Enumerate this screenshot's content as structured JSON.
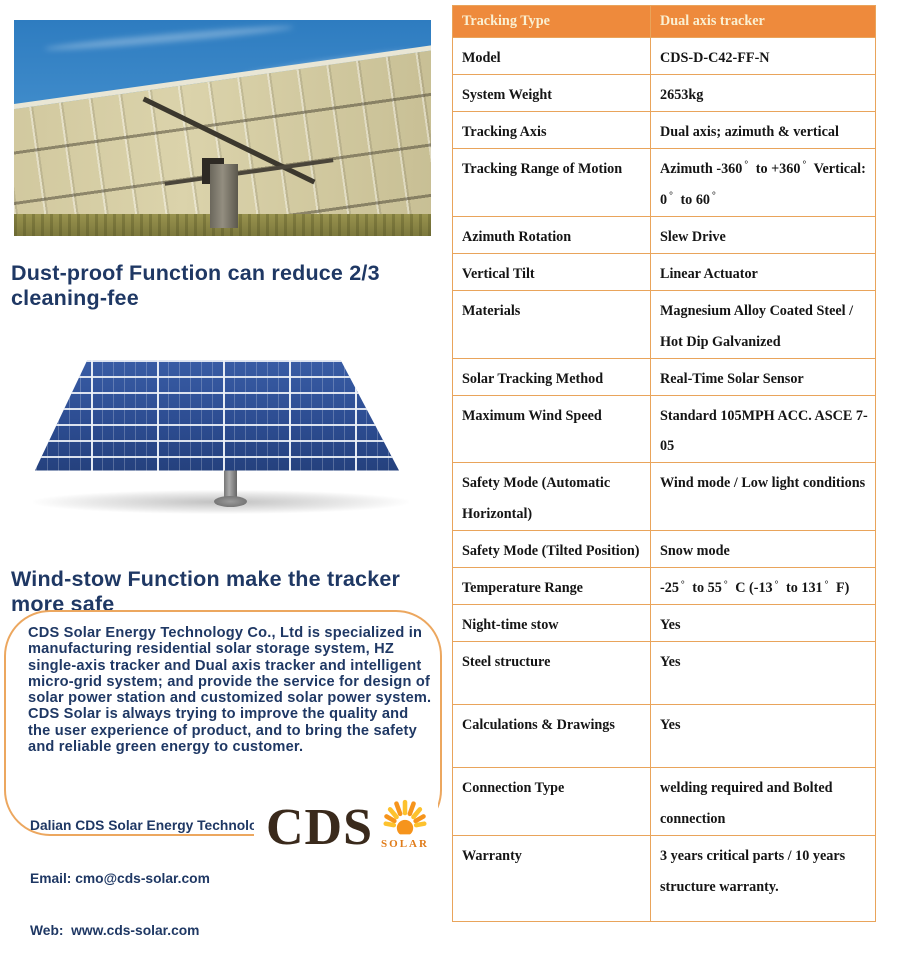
{
  "colors": {
    "accent_orange": "#EE8A3C",
    "table_border": "#E9A45B",
    "heading_navy": "#1F3864",
    "logo_brown": "#3A2A1C",
    "sun_orange": "#F6941C",
    "sun_yellow": "#FDC22D"
  },
  "left": {
    "photo_description": "rear view of a large dual axis tracker solar array under blue sky",
    "render_description": "3D render of a pole-mounted dual axis tracker solar panel",
    "heading_dust": "Dust-proof Function can reduce 2/3 cleaning-fee",
    "heading_wind": "Wind-stow Function make the tracker more safe",
    "about_para1": "CDS Solar Energy Technology Co., Ltd is specialized in manufacturing residential solar storage system, HZ single-axis tracker and Dual axis tracker and intelligent micro-grid system; and provide the service for design of solar power station and customized solar power system.",
    "about_para2": "CDS Solar is always trying to improve the quality and the user experience of product, and to bring the safety and reliable green energy to customer.",
    "contact": {
      "company": "Dalian CDS Solar Energy Technology co., Ltd",
      "email": "Email: cmo@cds-solar.com",
      "web": "Web:  www.cds-solar.com"
    },
    "logo": {
      "name": "CDS",
      "sub": "SOLAR"
    }
  },
  "table": {
    "header": {
      "label": "Tracking Type",
      "value": "Dual axis tracker"
    },
    "rows": [
      {
        "label": "Model",
        "value": "CDS-D-C42-FF-N"
      },
      {
        "label": "System Weight",
        "value": "2653kg"
      },
      {
        "label": "Tracking Axis",
        "value": "Dual axis; azimuth & vertical"
      },
      {
        "label": "Tracking Range of Motion",
        "value": "Azimuth -360° to +360° Vertical: 0° to 60°"
      },
      {
        "label": "Azimuth Rotation",
        "value": "Slew Drive"
      },
      {
        "label": "Vertical Tilt",
        "value": "Linear Actuator"
      },
      {
        "label": "Materials",
        "value": "Magnesium Alloy Coated Steel / Hot Dip Galvanized"
      },
      {
        "label": "Solar Tracking Method",
        "value": "Real-Time Solar Sensor"
      },
      {
        "label": "Maximum Wind Speed",
        "value": "Standard 105MPH ACC. ASCE 7-05"
      },
      {
        "label": "Safety Mode (Automatic Horizontal)",
        "value": "Wind mode / Low light conditions"
      },
      {
        "label": "Safety Mode (Tilted Position)",
        "value": "Snow mode"
      },
      {
        "label": "Temperature Range",
        "value": "-25° to 55° C (-13° to 131° F)"
      },
      {
        "label": "Night-time stow",
        "value": "Yes"
      },
      {
        "label": "Steel structure",
        "value": "Yes"
      },
      {
        "label": "Calculations & Drawings",
        "value": "Yes"
      },
      {
        "label": "Connection Type",
        "value": "welding required and Bolted connection"
      },
      {
        "label": "Warranty",
        "value": "3 years critical parts / 10 years structure warranty."
      }
    ]
  }
}
